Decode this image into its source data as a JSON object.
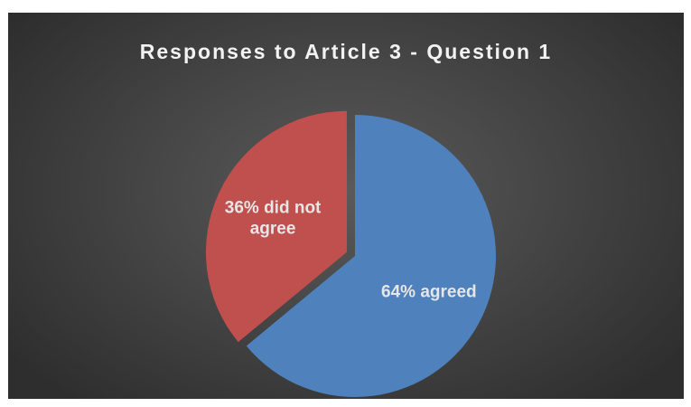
{
  "chart_data": {
    "type": "pie",
    "title": "Responses to Article 3 - Question 1",
    "slices": [
      {
        "name": "agreed",
        "value": 64,
        "label_lines": [
          "64% agreed"
        ],
        "color": "#4f81bd",
        "exploded": false
      },
      {
        "name": "did not agree",
        "value": 36,
        "label_lines": [
          "36% did not",
          "agree"
        ],
        "color": "#c0504d",
        "exploded": true
      }
    ],
    "start_angle_deg": 0,
    "direction": "clockwise",
    "legend": "none"
  },
  "colors": {
    "background": "#444444",
    "title": "#f2f2f2",
    "label": "#e6e6e6"
  }
}
